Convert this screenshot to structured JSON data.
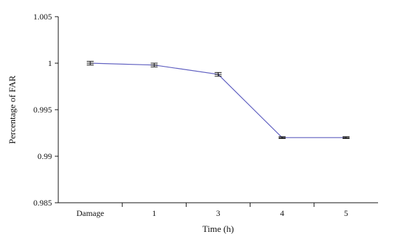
{
  "chart_data": {
    "type": "line",
    "categories": [
      "Damage",
      "1",
      "3",
      "4",
      "5"
    ],
    "series": [
      {
        "values": [
          1.0,
          0.9998,
          0.9988,
          0.992,
          0.992
        ],
        "errors": [
          0.0002,
          0.0002,
          0.0002,
          0.0001,
          0.0001
        ],
        "color": "#5b5bbf"
      }
    ],
    "xlabel": "Time (h)",
    "ylabel": "Percentage of FAR",
    "ylim": [
      0.985,
      1.005
    ],
    "yticks": [
      "0.985",
      "0.99",
      "0.995",
      "1",
      "1.005"
    ],
    "grid": false,
    "legend": "none"
  }
}
